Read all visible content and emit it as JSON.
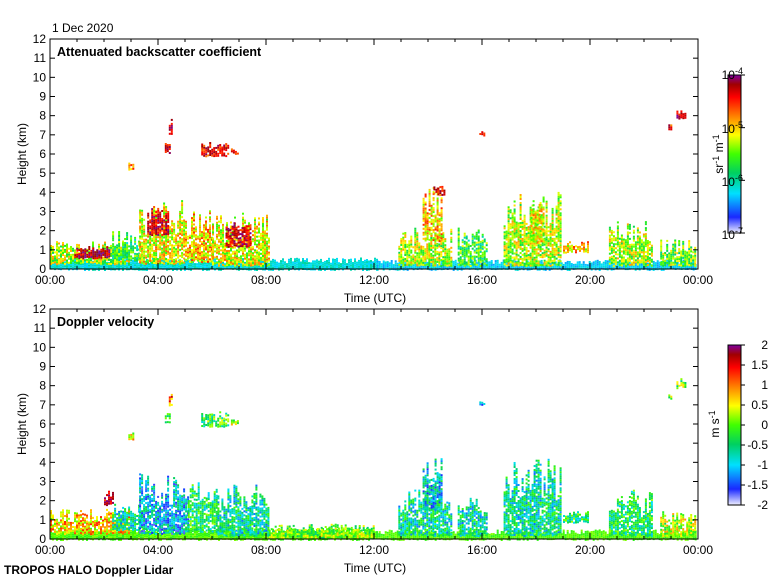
{
  "header": {
    "date": "1 Dec 2020"
  },
  "footer": {
    "text": "TROPOS HALO Doppler Lidar"
  },
  "chart_data": [
    {
      "type": "heatmap",
      "title": "Attenuated backscatter coefficient",
      "xlabel": "Time (UTC)",
      "ylabel": "Height (km)",
      "xlim": [
        0,
        24
      ],
      "ylim": [
        0,
        12
      ],
      "x_ticks": [
        "00:00",
        "04:00",
        "08:00",
        "12:00",
        "16:00",
        "20:00",
        "00:00"
      ],
      "y_ticks": [
        "0",
        "1",
        "2",
        "3",
        "4",
        "5",
        "6",
        "7",
        "8",
        "9",
        "10",
        "11",
        "12"
      ],
      "colorbar": {
        "scale": "log",
        "range": [
          1e-07,
          0.0001
        ],
        "tick_base": "10",
        "tick_exponents": [
          "-4",
          "-5",
          "-6",
          "-7"
        ],
        "unit": {
          "part1": "sr",
          "exp1": "-1",
          "part2": " m",
          "exp2": "-1"
        },
        "colormap": [
          "#f0f0ff",
          "#1a28ff",
          "#00e0ff",
          "#00d060",
          "#40ff00",
          "#ffff00",
          "#ff8000",
          "#ff0000",
          "#a00000",
          "#8000a0"
        ]
      },
      "features": [
        {
          "t0": 0.0,
          "t1": 12.1,
          "h0": 0.0,
          "h1": 0.6,
          "v": 0.25
        },
        {
          "t0": 12.1,
          "t1": 23.9,
          "h0": 0.0,
          "h1": 0.5,
          "v": 0.22
        },
        {
          "t0": 0.0,
          "t1": 2.9,
          "h0": 0.3,
          "h1": 1.5,
          "v": 0.5
        },
        {
          "t0": 0.9,
          "t1": 2.2,
          "h0": 0.6,
          "h1": 1.2,
          "v": 0.9
        },
        {
          "t0": 2.3,
          "t1": 3.4,
          "h0": 0.5,
          "h1": 2.0,
          "v": 0.4
        },
        {
          "t0": 3.3,
          "t1": 5.0,
          "h0": 0.3,
          "h1": 3.6,
          "v": 0.55
        },
        {
          "t0": 3.6,
          "t1": 4.4,
          "h0": 1.8,
          "h1": 3.2,
          "v": 0.85
        },
        {
          "t0": 5.0,
          "t1": 6.0,
          "h0": 0.4,
          "h1": 3.2,
          "v": 0.6
        },
        {
          "t0": 6.0,
          "t1": 8.1,
          "h0": 0.2,
          "h1": 3.0,
          "v": 0.55
        },
        {
          "t0": 6.5,
          "t1": 7.4,
          "h0": 1.2,
          "h1": 2.6,
          "v": 0.85
        },
        {
          "t0": 4.4,
          "t1": 4.5,
          "h0": 7.1,
          "h1": 7.9,
          "v": 0.85
        },
        {
          "t0": 4.25,
          "t1": 4.4,
          "h0": 6.1,
          "h1": 6.7,
          "v": 0.85
        },
        {
          "t0": 2.9,
          "t1": 3.05,
          "h0": 5.2,
          "h1": 5.6,
          "v": 0.7
        },
        {
          "t0": 5.6,
          "t1": 6.6,
          "h0": 5.9,
          "h1": 6.7,
          "v": 0.82
        },
        {
          "t0": 6.7,
          "t1": 6.95,
          "h0": 6.0,
          "h1": 6.3,
          "v": 0.8
        },
        {
          "t0": 12.9,
          "t1": 14.9,
          "h0": 0.2,
          "h1": 2.2,
          "v": 0.5
        },
        {
          "t0": 13.8,
          "t1": 14.5,
          "h0": 1.5,
          "h1": 4.4,
          "v": 0.6
        },
        {
          "t0": 14.2,
          "t1": 14.6,
          "h0": 3.9,
          "h1": 4.4,
          "v": 0.8
        },
        {
          "t0": 15.1,
          "t1": 16.2,
          "h0": 0.2,
          "h1": 2.3,
          "v": 0.4
        },
        {
          "t0": 15.9,
          "t1": 16.05,
          "h0": 7.0,
          "h1": 7.2,
          "v": 0.85
        },
        {
          "t0": 16.8,
          "t1": 18.9,
          "h0": 0.2,
          "h1": 4.2,
          "v": 0.5
        },
        {
          "t0": 17.8,
          "t1": 18.3,
          "h0": 1.4,
          "h1": 4.0,
          "v": 0.55
        },
        {
          "t0": 19.0,
          "t1": 19.9,
          "h0": 0.9,
          "h1": 1.5,
          "v": 0.6
        },
        {
          "t0": 20.7,
          "t1": 22.3,
          "h0": 0.2,
          "h1": 2.5,
          "v": 0.5
        },
        {
          "t0": 22.6,
          "t1": 23.9,
          "h0": 0.2,
          "h1": 1.6,
          "v": 0.45
        },
        {
          "t0": 23.2,
          "t1": 23.5,
          "h0": 7.9,
          "h1": 8.4,
          "v": 0.85
        },
        {
          "t0": 22.9,
          "t1": 23.0,
          "h0": 7.3,
          "h1": 7.6,
          "v": 0.8
        }
      ]
    },
    {
      "type": "heatmap",
      "title": "Doppler velocity",
      "xlabel": "Time (UTC)",
      "ylabel": "Height (km)",
      "xlim": [
        0,
        24
      ],
      "ylim": [
        0,
        12
      ],
      "x_ticks": [
        "00:00",
        "04:00",
        "08:00",
        "12:00",
        "16:00",
        "20:00",
        "00:00"
      ],
      "y_ticks": [
        "0",
        "1",
        "2",
        "3",
        "4",
        "5",
        "6",
        "7",
        "8",
        "9",
        "10",
        "11",
        "12"
      ],
      "colorbar": {
        "scale": "linear",
        "range": [
          -2,
          2
        ],
        "ticks": [
          "2",
          "1.5",
          "1",
          "0.5",
          "0",
          "-0.5",
          "-1",
          "-1.5",
          "-2"
        ],
        "unit": {
          "part1": "m s",
          "exp1": "-1"
        },
        "colormap": [
          "#f0f0ff",
          "#1a28ff",
          "#00e0ff",
          "#00d060",
          "#40ff00",
          "#ffff00",
          "#ff8000",
          "#ff0000",
          "#a00000",
          "#8000a0"
        ]
      },
      "features": [
        {
          "t0": 0.0,
          "t1": 12.1,
          "h0": 0.0,
          "h1": 0.6,
          "v": 0.45
        },
        {
          "t0": 12.1,
          "t1": 23.9,
          "h0": 0.0,
          "h1": 0.5,
          "v": 0.45
        },
        {
          "t0": 0.0,
          "t1": 2.9,
          "h0": 0.3,
          "h1": 1.6,
          "v": 0.6
        },
        {
          "t0": 2.0,
          "t1": 2.3,
          "h0": 1.8,
          "h1": 2.6,
          "v": 0.85
        },
        {
          "t0": 2.3,
          "t1": 3.4,
          "h0": 0.5,
          "h1": 2.0,
          "v": 0.3
        },
        {
          "t0": 3.3,
          "t1": 5.1,
          "h0": 0.3,
          "h1": 3.6,
          "v": 0.22
        },
        {
          "t0": 5.1,
          "t1": 6.2,
          "h0": 0.4,
          "h1": 3.0,
          "v": 0.35
        },
        {
          "t0": 6.2,
          "t1": 8.1,
          "h0": 0.2,
          "h1": 3.0,
          "v": 0.3
        },
        {
          "t0": 8.1,
          "t1": 12.0,
          "h0": 0.1,
          "h1": 0.8,
          "v": 0.45
        },
        {
          "t0": 4.4,
          "t1": 4.5,
          "h0": 7.0,
          "h1": 7.8,
          "v": 0.7
        },
        {
          "t0": 4.25,
          "t1": 4.4,
          "h0": 6.1,
          "h1": 6.7,
          "v": 0.4
        },
        {
          "t0": 2.9,
          "t1": 3.05,
          "h0": 5.2,
          "h1": 5.6,
          "v": 0.55
        },
        {
          "t0": 5.6,
          "t1": 6.6,
          "h0": 5.9,
          "h1": 6.7,
          "v": 0.4
        },
        {
          "t0": 6.7,
          "t1": 6.95,
          "h0": 6.0,
          "h1": 6.3,
          "v": 0.5
        },
        {
          "t0": 12.9,
          "t1": 14.9,
          "h0": 0.2,
          "h1": 2.6,
          "v": 0.3
        },
        {
          "t0": 13.8,
          "t1": 14.5,
          "h0": 1.5,
          "h1": 4.5,
          "v": 0.25
        },
        {
          "t0": 15.1,
          "t1": 16.2,
          "h0": 0.2,
          "h1": 2.3,
          "v": 0.3
        },
        {
          "t0": 15.9,
          "t1": 16.05,
          "h0": 7.0,
          "h1": 7.2,
          "v": 0.15
        },
        {
          "t0": 16.8,
          "t1": 18.9,
          "h0": 0.2,
          "h1": 4.2,
          "v": 0.3
        },
        {
          "t0": 19.0,
          "t1": 19.9,
          "h0": 0.9,
          "h1": 1.5,
          "v": 0.35
        },
        {
          "t0": 20.7,
          "t1": 22.3,
          "h0": 0.2,
          "h1": 2.6,
          "v": 0.35
        },
        {
          "t0": 22.6,
          "t1": 23.9,
          "h0": 0.2,
          "h1": 1.6,
          "v": 0.5
        },
        {
          "t0": 23.2,
          "t1": 23.5,
          "h0": 7.9,
          "h1": 8.4,
          "v": 0.45
        },
        {
          "t0": 22.9,
          "t1": 23.0,
          "h0": 7.3,
          "h1": 7.6,
          "v": 0.45
        }
      ]
    }
  ]
}
